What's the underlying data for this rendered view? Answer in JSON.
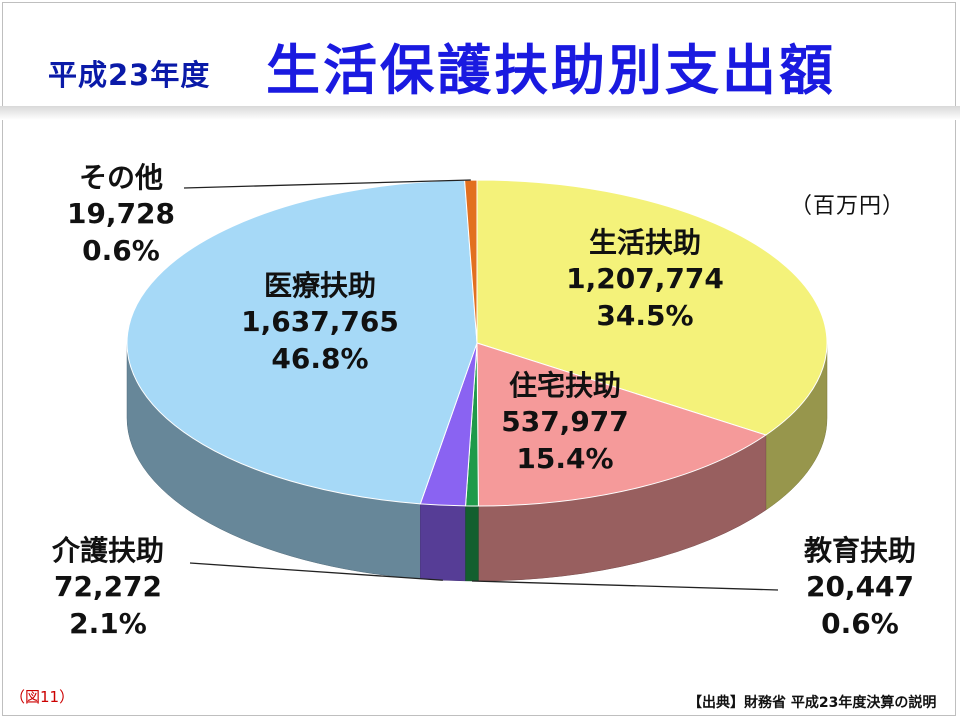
{
  "header": {
    "year": "平成23年度",
    "title": "生活保護扶助別支出額"
  },
  "unit_note": "（百万円）",
  "figure_no": "（図11）",
  "source": "【出典】財務省 平成23年度決算の説明",
  "chart_data": {
    "type": "pie",
    "title": "生活保護扶助別支出額",
    "unit": "百万円",
    "slices": [
      {
        "name": "生活扶助",
        "value": 1207774,
        "value_label": "1,207,774",
        "percent_label": "34.5%",
        "color": "#f4f27a"
      },
      {
        "name": "住宅扶助",
        "value": 537977,
        "value_label": "537,977",
        "percent_label": "15.4%",
        "color": "#f59a9a"
      },
      {
        "name": "教育扶助",
        "value": 20447,
        "value_label": "20,447",
        "percent_label": "0.6%",
        "color": "#1f9a4a"
      },
      {
        "name": "介護扶助",
        "value": 72272,
        "value_label": "72,272",
        "percent_label": "2.1%",
        "color": "#8a63f2"
      },
      {
        "name": "医療扶助",
        "value": 1637765,
        "value_label": "1,637,765",
        "percent_label": "46.8%",
        "color": "#a6d9f7"
      },
      {
        "name": "その他",
        "value": 19728,
        "value_label": "19,728",
        "percent_label": "0.6%",
        "color": "#e2701f"
      }
    ]
  }
}
